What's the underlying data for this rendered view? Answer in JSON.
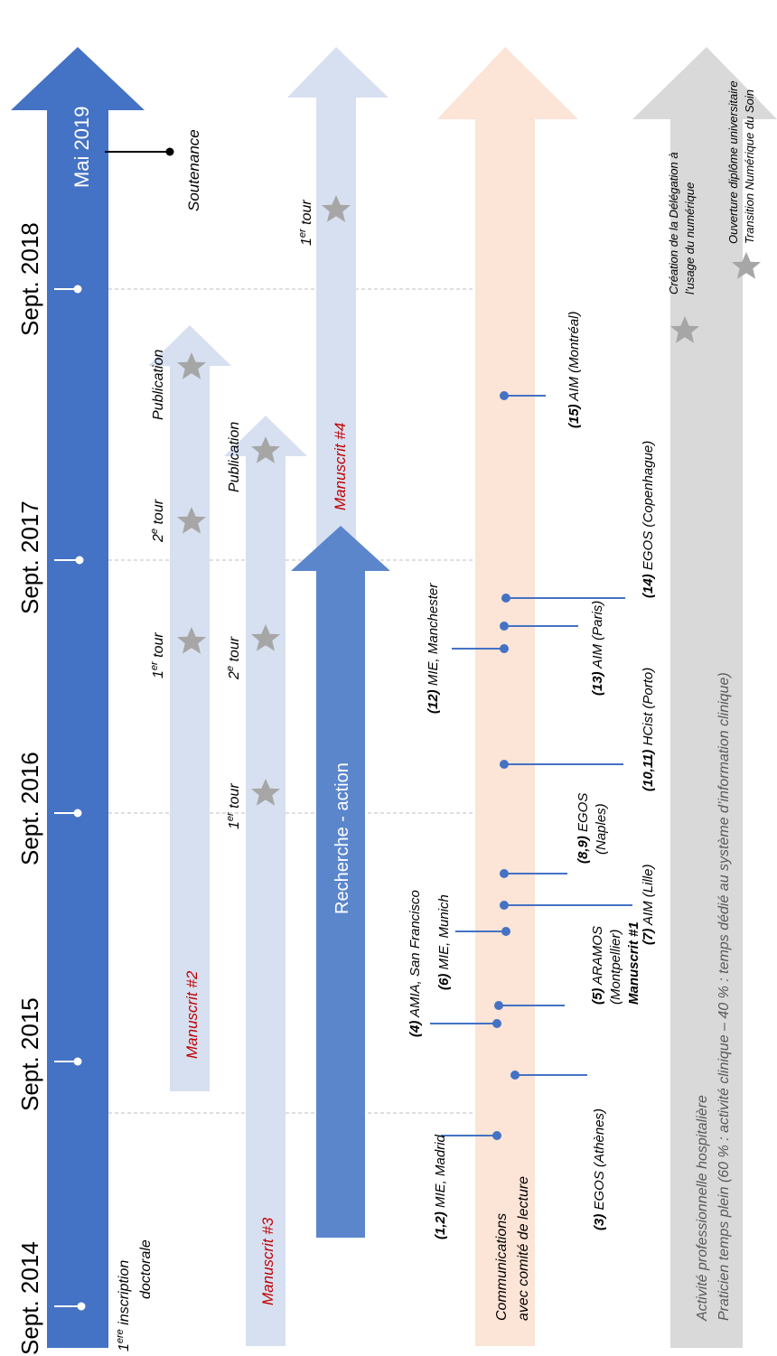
{
  "colors": {
    "main_arrow": "#4472c4",
    "recherche_arrow": "#5b86cc",
    "pale_arrow": "#d7e0f1",
    "comm_arrow": "#fce4d6",
    "grey_arrow": "#d9d9d9",
    "star": "#a6a6a6",
    "tick_line": "#4472c4",
    "manuscript_text": "#c00000"
  },
  "timeline": {
    "years": [
      "Sept. 2014",
      "Sept. 2015",
      "Sept. 2016",
      "Sept. 2017",
      "Sept. 2018"
    ],
    "milestone_2019": "Mai 2019",
    "soutenance": "Soutenance",
    "inscription": [
      "1",
      "ere",
      " inscription",
      "doctorale"
    ]
  },
  "manuscripts": {
    "m2": {
      "label": "Manuscrit #2",
      "tour1": [
        "1",
        "er",
        " tour"
      ],
      "tour2": [
        "2",
        "e",
        " tour"
      ],
      "publication": "Publication"
    },
    "m3": {
      "label": "Manuscrit #3",
      "tour1": [
        "1",
        "er",
        " tour"
      ],
      "tour2": [
        "2",
        "e",
        " tour"
      ],
      "publication": "Publication"
    },
    "m4": {
      "label": "Manuscrit #4",
      "tour1": [
        "1",
        "er",
        " tour"
      ]
    },
    "m1": {
      "label": "Manuscrit #1"
    }
  },
  "recherche": {
    "label": "Recherche - action"
  },
  "communications": {
    "title_line1": "Communications",
    "title_line2": "avec comité de lecture",
    "items": [
      {
        "num": "(1,2)",
        "rest": " MIE, Madrid"
      },
      {
        "num": "(3)",
        "rest": " EGOS (Athènes)"
      },
      {
        "num": "(4)",
        "rest": " AMIA, San Francisco"
      },
      {
        "num": "(5)",
        "rest": " ARAMOS",
        "line2": "(Montpellier)"
      },
      {
        "num": "(6)",
        "rest": " MIE, Munich"
      },
      {
        "num": "(7)",
        "rest": " AIM (Lille)"
      },
      {
        "num": "(8,9)",
        "rest": " EGOS",
        "line2": "(Naples)"
      },
      {
        "num": "(10,11)",
        "rest": " HCist (Porto)"
      },
      {
        "num": "(12)",
        "rest": " MIE, Manchester"
      },
      {
        "num": "(13)",
        "rest": " AIM (Paris)"
      },
      {
        "num": "(14)",
        "rest": " EGOS (Copenhague)"
      },
      {
        "num": "(15)",
        "rest": " AIM (Montréal)"
      }
    ]
  },
  "activite": {
    "line1": "Activité professionnelle hospitalière",
    "line2": "Praticien temps plein (60 % : activité clinique – 40 % : temps dédié au système d’information clinique)",
    "delegation_line1": "Création de la Délégation à",
    "delegation_line2": "l’usage du numérique",
    "du_line1": "Ouverture diplôme universitaire",
    "du_line2": "Transition Numérique du Soin"
  }
}
